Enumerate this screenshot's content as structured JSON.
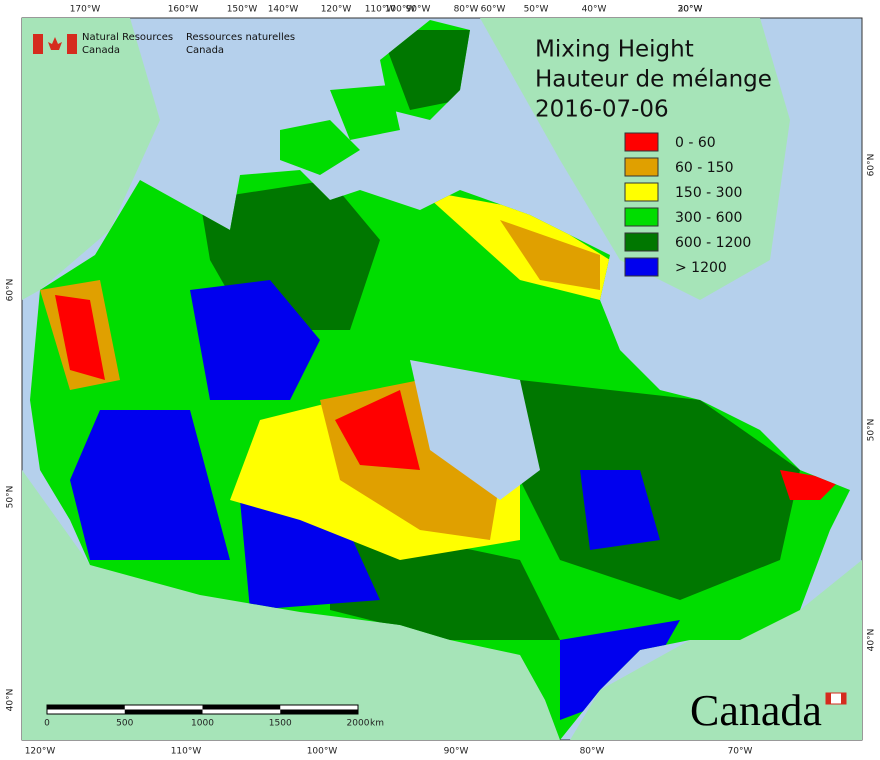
{
  "header": {
    "english": [
      "Natural Resources",
      "Canada"
    ],
    "french": [
      "Ressources naturelles",
      "Canada"
    ]
  },
  "title": [
    "Mixing Height",
    "Hauteur de mélange",
    "2016-07-06"
  ],
  "legend": [
    {
      "label": "0 - 60",
      "color": "#ff0000"
    },
    {
      "label": "60 - 150",
      "color": "#e0a000"
    },
    {
      "label": "150 - 300",
      "color": "#ffff00"
    },
    {
      "label": "300 - 600",
      "color": "#00dd00"
    },
    {
      "label": "600 - 1200",
      "color": "#007700"
    },
    {
      "label": "> 1200",
      "color": "#0000ee"
    }
  ],
  "graticule": {
    "top": [
      "170°W",
      "160°W",
      "150°W",
      "140°W",
      "120°W",
      "110°W",
      "100°W",
      "90°W",
      "80°W",
      "60°W",
      "50°W",
      "40°W",
      "30°W",
      "20°W"
    ],
    "bottom": [
      "120°W",
      "110°W",
      "100°W",
      "90°W",
      "80°W",
      "70°W"
    ],
    "left": [
      "60°N",
      "50°N",
      "40°N"
    ],
    "right": [
      "60°N",
      "50°N",
      "40°N"
    ]
  },
  "scale_bar": {
    "ticks": [
      0,
      500,
      1000,
      1500,
      2000
    ],
    "unit": "km"
  },
  "wordmark": "Canada"
}
